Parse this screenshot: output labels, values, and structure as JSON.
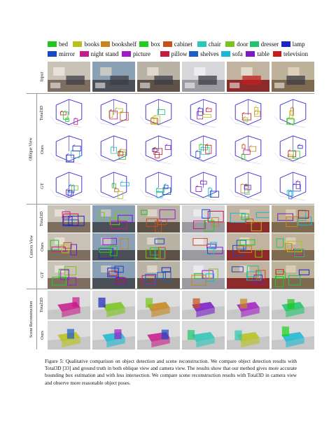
{
  "legend": {
    "row1": [
      {
        "label": "bed",
        "color": "#23c41f"
      },
      {
        "label": "books",
        "color": "#b7c219"
      },
      {
        "label": "bookshelf",
        "color": "#c7861a"
      },
      {
        "label": "box",
        "color": "#1fd01a"
      },
      {
        "label": "cabinet",
        "color": "#c8501a"
      },
      {
        "label": "chair",
        "color": "#2ac8b8"
      },
      {
        "label": "door",
        "color": "#79c51d"
      },
      {
        "label": "dresser",
        "color": "#1ec56a"
      },
      {
        "label": "lamp",
        "color": "#1a24c9"
      }
    ],
    "row2": [
      {
        "label": "mirror",
        "color": "#1a47c7"
      },
      {
        "label": "night stand",
        "color": "#c81a8a"
      },
      {
        "label": "picture",
        "color": "#a21ac8"
      },
      {
        "label": "pillow",
        "color": "#c81a3a"
      },
      {
        "label": "shelves",
        "color": "#1a5ec8"
      },
      {
        "label": "sofa",
        "color": "#1ab8d4"
      },
      {
        "label": "table",
        "color": "#7a1ac8"
      },
      {
        "label": "television",
        "color": "#c81a1a"
      }
    ]
  },
  "groups": {
    "oblique": "Oblique View",
    "camera": "Camera View",
    "scene": "Scene Reconstruction"
  },
  "rows": {
    "input": "Input",
    "obl_total3d": "Total3D",
    "obl_ours": "Ours",
    "obl_gt": "GT",
    "cam_total3d": "Total3D",
    "cam_ours": "Ours",
    "cam_gt": "GT",
    "scn_total3d": "Total3D",
    "scn_ours": "Ours"
  },
  "caption": "Figure 5: Qualitative comparison on object detection and scene reconstruction. We compare object detection results with Total3D [33] and ground truth in both oblique view and camera view. The results show that our method gives more accurate bounding box estimation and with less intersection. We compare scene reconstruction results with Total3D in camera view and observe more reasonable object poses."
}
